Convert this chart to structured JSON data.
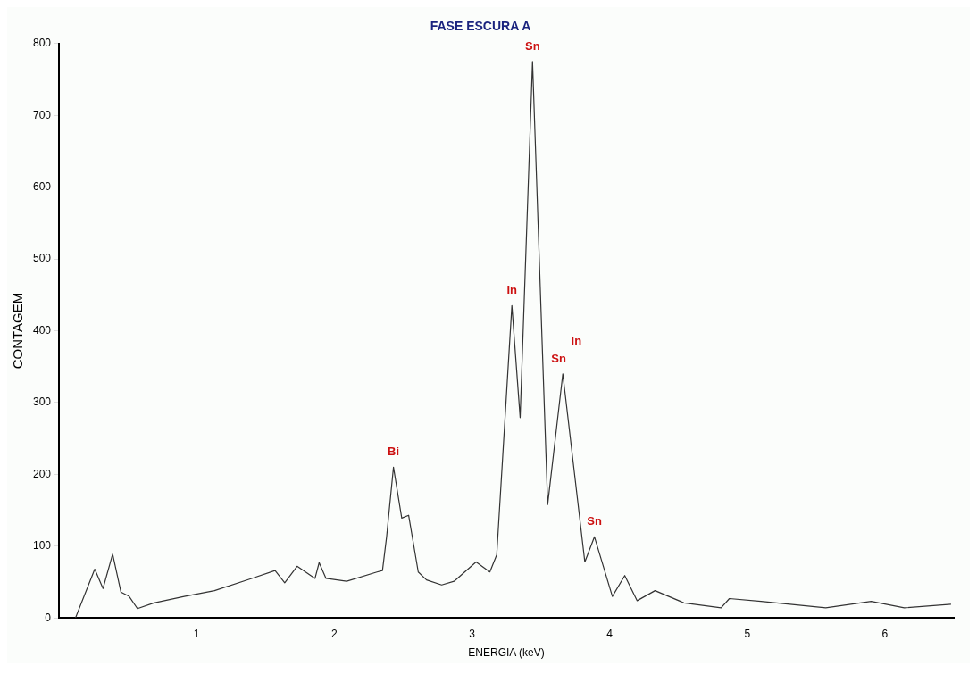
{
  "chart_data": {
    "type": "line",
    "title": "FASE ESCURA A",
    "xlabel": "ENERGIA (keV)",
    "ylabel": "CONTAGEM",
    "series": [
      {
        "color": "#333333",
        "x": [
          0.12,
          0.26,
          0.32,
          0.39,
          0.45,
          0.51,
          0.57,
          0.69,
          0.91,
          1.13,
          1.4,
          1.57,
          1.64,
          1.73,
          1.86,
          1.89,
          1.94,
          2.09,
          2.31,
          2.35,
          2.38,
          2.43,
          2.49,
          2.54,
          2.61,
          2.67,
          2.78,
          2.87,
          3.03,
          3.13,
          3.18,
          3.29,
          3.35,
          3.44,
          3.55,
          3.66,
          3.82,
          3.89,
          4.02,
          4.11,
          4.2,
          4.33,
          4.54,
          4.81,
          4.87,
          5.1,
          5.57,
          5.9,
          6.14,
          6.48
        ],
        "values": [
          0,
          68,
          41,
          89,
          36,
          30,
          13,
          21,
          30,
          38,
          55,
          66,
          49,
          72,
          55,
          77,
          55,
          51,
          64,
          66,
          113,
          210,
          139,
          143,
          64,
          53,
          46,
          51,
          78,
          64,
          88,
          435,
          279,
          775,
          158,
          340,
          78,
          113,
          30,
          59,
          24,
          38,
          21,
          14,
          27,
          23,
          14,
          23,
          14,
          19
        ]
      }
    ],
    "xlim": [
      0,
      6.5
    ],
    "xticks": [
      {
        "value": 0,
        "label": null
      },
      1,
      2,
      3,
      4,
      5,
      6
    ],
    "ylim": [
      0,
      800
    ],
    "yticks": [
      0,
      100,
      200,
      300,
      400,
      500,
      600,
      700,
      800
    ],
    "grid": false,
    "legend": false,
    "marker": "none",
    "line_style": "solid",
    "annotations": [
      {
        "text": "Bi",
        "x": 2.43,
        "y": 210
      },
      {
        "text": "In",
        "x": 3.29,
        "y": 435
      },
      {
        "text": "Sn",
        "x": 3.44,
        "y": 775
      },
      {
        "text": "Sn",
        "x": 3.63,
        "y": 340
      },
      {
        "text": "In",
        "x": 3.68,
        "y": 340
      },
      {
        "text": "Sn",
        "x": 3.89,
        "y": 113
      }
    ]
  }
}
